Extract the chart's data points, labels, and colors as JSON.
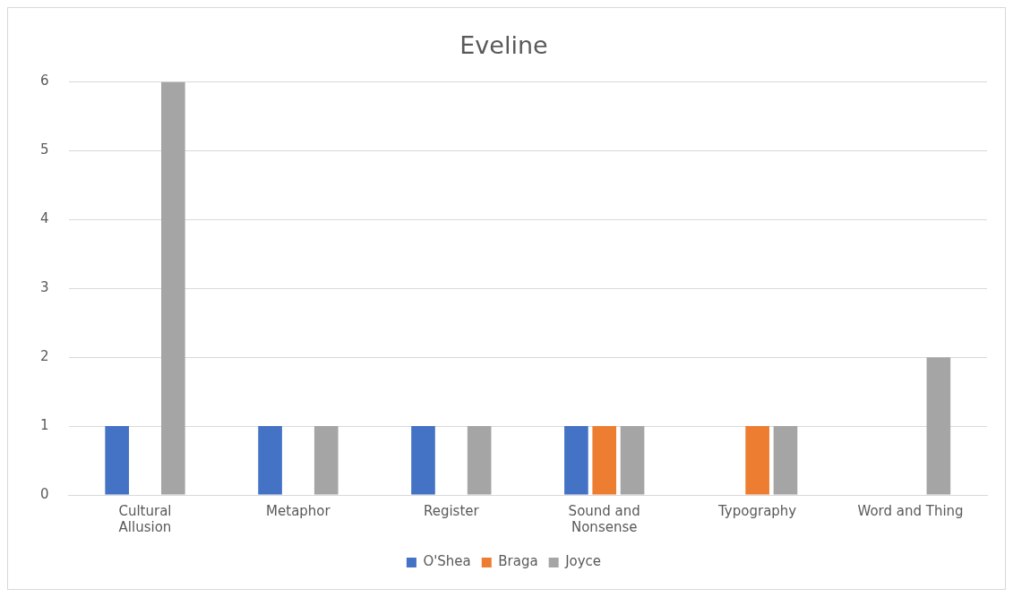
{
  "chart_data": {
    "type": "bar",
    "title": "Eveline",
    "categories": [
      "Cultural Allusion",
      "Metaphor",
      "Register",
      "Sound and Nonsense",
      "Typography",
      "Word and Thing"
    ],
    "series": [
      {
        "name": "O'Shea",
        "color": "#4472c4",
        "values": [
          1,
          1,
          1,
          1,
          0,
          0
        ]
      },
      {
        "name": "Braga",
        "color": "#ed7d31",
        "values": [
          0,
          0,
          0,
          1,
          1,
          0
        ]
      },
      {
        "name": "Joyce",
        "color": "#a5a5a5",
        "values": [
          6,
          1,
          1,
          1,
          1,
          2
        ]
      }
    ],
    "ylim": [
      0,
      6
    ],
    "yticks": [
      0,
      1,
      2,
      3,
      4,
      5,
      6
    ],
    "grid": "y",
    "legend": "bottom"
  }
}
